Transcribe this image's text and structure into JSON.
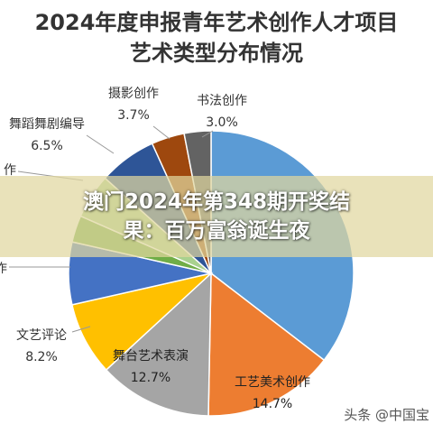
{
  "title_lines": [
    "2024年度申报青年艺术创作人才项目",
    "艺术类型分布情况"
  ],
  "overlay": {
    "line1": "澳门2024年第348期开奖结",
    "line2": "果：百万富翁诞生夜",
    "color": "#e1d7a0"
  },
  "watermark": "头条 @中国宝",
  "chart_data": {
    "type": "pie",
    "title": "2024年度申报青年艺术创作人才项目 艺术类型分布情况",
    "slices": [
      {
        "label": "",
        "value": 35.0,
        "value_label": "",
        "color": "#5b9bd5"
      },
      {
        "label": "工艺美术创作",
        "value": 14.7,
        "value_label": "14.7%",
        "color": "#ed7d31"
      },
      {
        "label": "舞台艺术表演",
        "value": 12.7,
        "value_label": "12.7%",
        "color": "#a5a5a5"
      },
      {
        "label": "文艺评论",
        "value": 8.2,
        "value_label": "8.2%",
        "color": "#ffc000"
      },
      {
        "label": "作",
        "value": 7.0,
        "value_label": "",
        "color": "#4472c4"
      },
      {
        "label": "",
        "value": 3.0,
        "value_label": "",
        "color": "#70ad47"
      },
      {
        "label": "作",
        "value": 5.0,
        "value_label": "",
        "color": "#a9d18e"
      },
      {
        "label": "舞蹈舞剧编导",
        "value": 6.5,
        "value_label": "6.5%",
        "color": "#2e5597"
      },
      {
        "label": "摄影创作",
        "value": 3.7,
        "value_label": "3.7%",
        "color": "#9e480e"
      },
      {
        "label": "书法创作",
        "value": 3.0,
        "value_label": "3.0%",
        "color": "#636363"
      }
    ]
  }
}
